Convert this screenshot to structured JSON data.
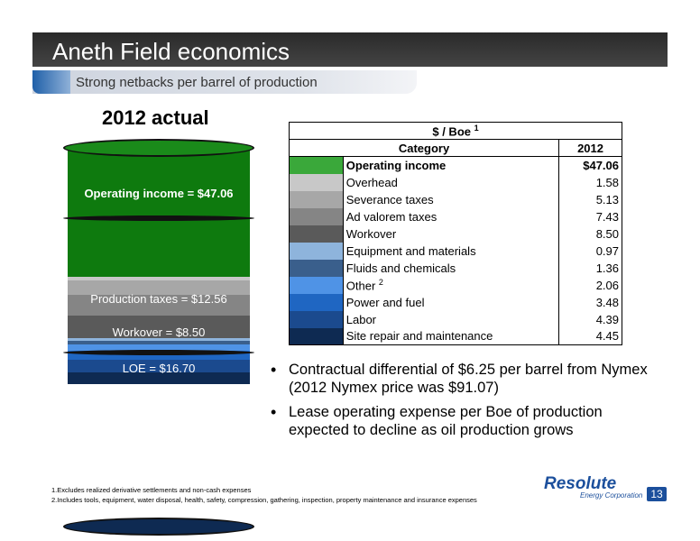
{
  "slide": {
    "title": "Aneth Field economics",
    "subtitle": "Strong netbacks per barrel of production",
    "year_label": "2012 actual",
    "page_number": "13"
  },
  "barrel": {
    "labels": {
      "operating": "Operating income = $47.06",
      "production_taxes": "Production taxes = $12.56",
      "workover": "Workover = $8.50",
      "loe": "LOE = $16.70"
    }
  },
  "table": {
    "header": "$ / Boe",
    "header_sup": "1",
    "col_category": "Category",
    "col_year": "2012"
  },
  "bullets": [
    "Contractual differential of $6.25 per barrel from Nymex (2012 Nymex price was $91.07)",
    "Lease operating expense per Boe of production expected to decline as oil production grows"
  ],
  "footnotes": [
    "1.Excludes realized derivative settlements and non-cash expenses",
    "2.Includes tools, equipment, water disposal, health, safety, compression, gathering, inspection, property maintenance and insurance expenses"
  ],
  "logo": {
    "name": "Resolute",
    "sub": "Energy Corporation"
  },
  "chart_data": {
    "type": "table",
    "title": "$ / Boe",
    "columns": [
      "Category",
      "2012"
    ],
    "rows": [
      {
        "category": "Operating income",
        "value": "$47.06",
        "color": "#3aa83a",
        "bold": true
      },
      {
        "category": "Overhead",
        "value": "1.58",
        "color": "#c8c8c8"
      },
      {
        "category": "Severance taxes",
        "value": "5.13",
        "color": "#a7a7a7"
      },
      {
        "category": "Ad valorem taxes",
        "value": "7.43",
        "color": "#858585"
      },
      {
        "category": "Workover",
        "value": "8.50",
        "color": "#5a5a5a"
      },
      {
        "category": "Equipment and materials",
        "value": "0.97",
        "color": "#8eb4dc"
      },
      {
        "category": "Fluids and chemicals",
        "value": "1.36",
        "color": "#3a5f8c"
      },
      {
        "category": "Other",
        "value": "2.06",
        "color": "#4f93e6",
        "sup": "2"
      },
      {
        "category": "Power and fuel",
        "value": "3.48",
        "color": "#1f66c2"
      },
      {
        "category": "Labor",
        "value": "4.39",
        "color": "#1b4a8e"
      },
      {
        "category": "Site repair and maintenance",
        "value": "4.45",
        "color": "#0e2a52"
      }
    ]
  }
}
